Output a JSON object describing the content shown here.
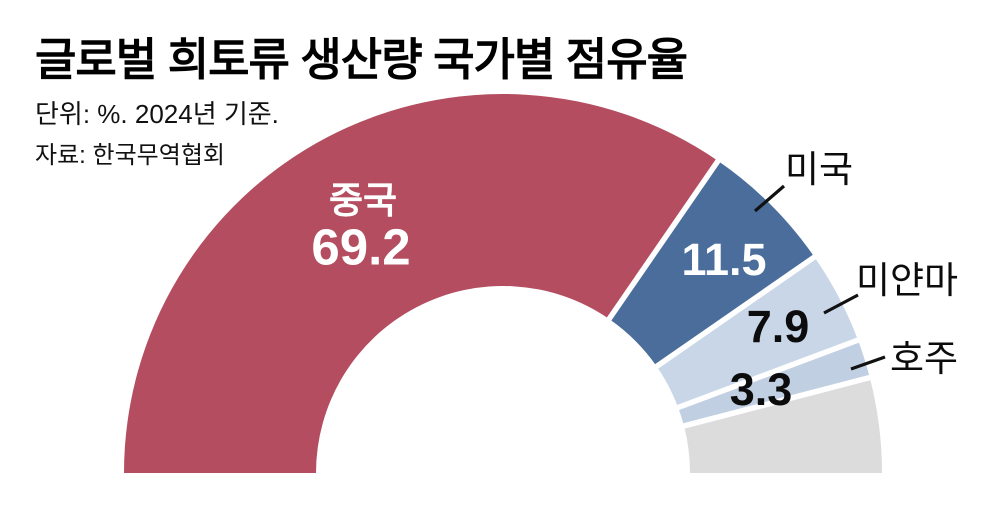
{
  "header": {
    "title": "글로벌 희토류 생산량 국가별 점유율",
    "unit_note": "단위: %. 2024년 기준.",
    "source": "자료: 한국무역협회"
  },
  "chart_data": {
    "type": "pie",
    "variant": "half-donut",
    "title": "글로벌 희토류 생산량 국가별 점유율",
    "subtitle": "단위: %. 2024년 기준.",
    "source": "자료: 한국무역협회",
    "unit": "%",
    "year": "2024",
    "start_angle_deg": 180,
    "end_angle_deg": 0,
    "legend_position": "callout-labels-right",
    "segments": [
      {
        "id": "china",
        "label": "중국",
        "value": 69.2,
        "value_text": "69.2",
        "color": "#b44d5f",
        "label_color": "#ffffff"
      },
      {
        "id": "usa",
        "label": "미국",
        "value": 11.5,
        "value_text": "11.5",
        "color": "#4a6d9b",
        "label_color": "#ffffff"
      },
      {
        "id": "myanmar",
        "label": "미얀마",
        "value": 7.9,
        "value_text": "7.9",
        "color": "#c8d6e8",
        "label_color": "#0c0c0c"
      },
      {
        "id": "australia",
        "label": "호주",
        "value": 3.3,
        "value_text": "3.3",
        "color": "#c1cfe2",
        "label_color": "#0c0c0c"
      },
      {
        "id": "others",
        "label": "",
        "value": 8.1,
        "value_text": "",
        "color": "#dcdcdd",
        "label_color": "#0c0c0c"
      }
    ],
    "colors": {
      "background": "#ffffff",
      "leader_line": "#111111"
    }
  }
}
